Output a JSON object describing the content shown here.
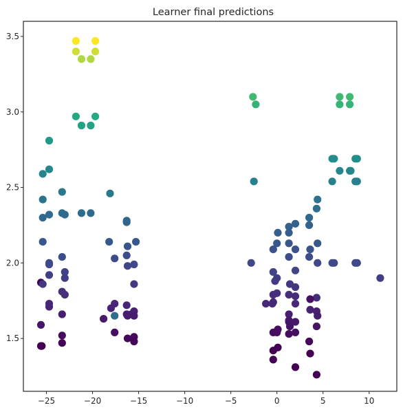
{
  "chart_data": {
    "type": "scatter",
    "title": "Learner final predictions",
    "xlabel": "",
    "ylabel": "",
    "xlim": [
      -27.5,
      13.0
    ],
    "ylim": [
      1.15,
      3.6
    ],
    "x_ticks": [
      -25,
      -20,
      -15,
      -10,
      -5,
      0,
      5,
      10
    ],
    "x_tick_labels": [
      "−25",
      "−20",
      "−15",
      "−10",
      "−5",
      "0",
      "5",
      "10"
    ],
    "y_ticks": [
      1.5,
      2.0,
      2.5,
      3.0,
      3.5
    ],
    "y_tick_labels": [
      "1.5",
      "2.0",
      "2.5",
      "3.0",
      "3.5"
    ],
    "grid": false,
    "colormap": "viridis",
    "color_range": [
      1.44,
      3.47
    ],
    "points": [
      {
        "x": -21.8,
        "y": 3.47,
        "c": 3.47
      },
      {
        "x": -19.7,
        "y": 3.47,
        "c": 3.47
      },
      {
        "x": -21.8,
        "y": 3.4,
        "c": 3.4
      },
      {
        "x": -19.7,
        "y": 3.4,
        "c": 3.4
      },
      {
        "x": -21.2,
        "y": 3.35,
        "c": 3.35
      },
      {
        "x": -20.2,
        "y": 3.35,
        "c": 3.35
      },
      {
        "x": -21.8,
        "y": 2.97,
        "c": 2.97
      },
      {
        "x": -19.7,
        "y": 2.97,
        "c": 2.97
      },
      {
        "x": -21.2,
        "y": 2.91,
        "c": 2.91
      },
      {
        "x": -20.2,
        "y": 2.91,
        "c": 2.91
      },
      {
        "x": -24.7,
        "y": 2.81,
        "c": 2.81
      },
      {
        "x": -24.7,
        "y": 2.62,
        "c": 2.62
      },
      {
        "x": -25.4,
        "y": 2.59,
        "c": 2.59
      },
      {
        "x": -23.3,
        "y": 2.47,
        "c": 2.47
      },
      {
        "x": -25.4,
        "y": 2.42,
        "c": 2.42
      },
      {
        "x": -18.1,
        "y": 2.46,
        "c": 2.46
      },
      {
        "x": -24.7,
        "y": 2.32,
        "c": 2.32
      },
      {
        "x": -23.3,
        "y": 2.33,
        "c": 2.33
      },
      {
        "x": -23.0,
        "y": 2.32,
        "c": 2.32
      },
      {
        "x": -21.2,
        "y": 2.33,
        "c": 2.33
      },
      {
        "x": -20.2,
        "y": 2.33,
        "c": 2.33
      },
      {
        "x": -25.4,
        "y": 2.3,
        "c": 2.3
      },
      {
        "x": -16.3,
        "y": 2.28,
        "c": 2.28
      },
      {
        "x": -16.3,
        "y": 2.27,
        "c": 2.27
      },
      {
        "x": -25.4,
        "y": 2.14,
        "c": 2.14
      },
      {
        "x": -18.2,
        "y": 2.14,
        "c": 2.14
      },
      {
        "x": -15.3,
        "y": 2.14,
        "c": 2.14
      },
      {
        "x": -16.2,
        "y": 2.11,
        "c": 2.11
      },
      {
        "x": -16.3,
        "y": 2.05,
        "c": 2.05
      },
      {
        "x": -23.3,
        "y": 2.04,
        "c": 2.04
      },
      {
        "x": -17.6,
        "y": 2.03,
        "c": 2.03
      },
      {
        "x": -24.7,
        "y": 2.0,
        "c": 2.0
      },
      {
        "x": -24.7,
        "y": 1.99,
        "c": 1.99
      },
      {
        "x": -15.5,
        "y": 1.99,
        "c": 1.99
      },
      {
        "x": -16.2,
        "y": 1.98,
        "c": 1.98
      },
      {
        "x": -23.0,
        "y": 1.94,
        "c": 1.94
      },
      {
        "x": -24.7,
        "y": 1.92,
        "c": 1.92
      },
      {
        "x": -23.0,
        "y": 1.9,
        "c": 1.9
      },
      {
        "x": -25.6,
        "y": 1.87,
        "c": 1.47
      },
      {
        "x": -25.4,
        "y": 1.86,
        "c": 1.86
      },
      {
        "x": -15.5,
        "y": 1.86,
        "c": 1.86
      },
      {
        "x": -23.3,
        "y": 1.81,
        "c": 1.81
      },
      {
        "x": -23.0,
        "y": 1.79,
        "c": 1.79
      },
      {
        "x": -17.6,
        "y": 1.73,
        "c": 1.73
      },
      {
        "x": -24.7,
        "y": 1.73,
        "c": 1.73
      },
      {
        "x": -24.7,
        "y": 1.71,
        "c": 1.71
      },
      {
        "x": -16.3,
        "y": 1.72,
        "c": 1.72
      },
      {
        "x": -18.0,
        "y": 1.7,
        "c": 1.7
      },
      {
        "x": -15.5,
        "y": 1.68,
        "c": 1.68
      },
      {
        "x": -23.3,
        "y": 1.66,
        "c": 1.66
      },
      {
        "x": -16.3,
        "y": 1.66,
        "c": 1.66
      },
      {
        "x": -15.8,
        "y": 1.66,
        "c": 1.66
      },
      {
        "x": -15.5,
        "y": 1.65,
        "c": 1.65
      },
      {
        "x": -16.2,
        "y": 1.65,
        "c": 1.65
      },
      {
        "x": -17.6,
        "y": 1.65,
        "c": 2.35
      },
      {
        "x": -18.8,
        "y": 1.63,
        "c": 1.63
      },
      {
        "x": -25.6,
        "y": 1.59,
        "c": 1.59
      },
      {
        "x": -17.6,
        "y": 1.54,
        "c": 1.54
      },
      {
        "x": -23.3,
        "y": 1.52,
        "c": 1.52
      },
      {
        "x": -15.5,
        "y": 1.51,
        "c": 1.51
      },
      {
        "x": -16.2,
        "y": 1.5,
        "c": 1.5
      },
      {
        "x": -15.5,
        "y": 1.48,
        "c": 1.48
      },
      {
        "x": -23.3,
        "y": 1.47,
        "c": 1.47
      },
      {
        "x": -25.6,
        "y": 1.45,
        "c": 1.44
      },
      {
        "x": -25.5,
        "y": 1.45,
        "c": 1.44
      },
      {
        "x": -2.6,
        "y": 3.1,
        "c": 3.1
      },
      {
        "x": -2.3,
        "y": 3.05,
        "c": 3.05
      },
      {
        "x": 6.8,
        "y": 3.1,
        "c": 3.1
      },
      {
        "x": 7.9,
        "y": 3.1,
        "c": 3.1
      },
      {
        "x": 6.8,
        "y": 3.05,
        "c": 3.05
      },
      {
        "x": 7.9,
        "y": 3.05,
        "c": 3.05
      },
      {
        "x": 6.0,
        "y": 2.69,
        "c": 2.69
      },
      {
        "x": 6.2,
        "y": 2.69,
        "c": 2.69
      },
      {
        "x": 8.5,
        "y": 2.69,
        "c": 2.69
      },
      {
        "x": 8.7,
        "y": 2.69,
        "c": 2.69
      },
      {
        "x": 6.8,
        "y": 2.61,
        "c": 2.61
      },
      {
        "x": 7.9,
        "y": 2.61,
        "c": 2.61
      },
      {
        "x": 8.0,
        "y": 2.61,
        "c": 2.61
      },
      {
        "x": -2.5,
        "y": 2.54,
        "c": 2.54
      },
      {
        "x": 6.0,
        "y": 2.54,
        "c": 2.54
      },
      {
        "x": 8.5,
        "y": 2.54,
        "c": 2.54
      },
      {
        "x": 8.7,
        "y": 2.54,
        "c": 2.54
      },
      {
        "x": 4.4,
        "y": 2.42,
        "c": 2.42
      },
      {
        "x": 4.3,
        "y": 2.36,
        "c": 2.36
      },
      {
        "x": 3.5,
        "y": 2.3,
        "c": 2.3
      },
      {
        "x": 2.0,
        "y": 2.26,
        "c": 2.26
      },
      {
        "x": 1.3,
        "y": 2.24,
        "c": 2.24
      },
      {
        "x": 3.5,
        "y": 2.25,
        "c": 2.25
      },
      {
        "x": 0.1,
        "y": 2.2,
        "c": 2.2
      },
      {
        "x": 1.3,
        "y": 2.2,
        "c": 2.2
      },
      {
        "x": 0.0,
        "y": 2.13,
        "c": 2.13
      },
      {
        "x": 1.3,
        "y": 2.13,
        "c": 2.13
      },
      {
        "x": 4.4,
        "y": 2.13,
        "c": 2.13
      },
      {
        "x": -0.4,
        "y": 2.09,
        "c": 2.09
      },
      {
        "x": 2.0,
        "y": 2.09,
        "c": 2.09
      },
      {
        "x": 3.6,
        "y": 2.09,
        "c": 2.09
      },
      {
        "x": 3.5,
        "y": 2.04,
        "c": 2.04
      },
      {
        "x": 1.3,
        "y": 2.04,
        "c": 2.04
      },
      {
        "x": -2.8,
        "y": 2.0,
        "c": 2.0
      },
      {
        "x": 4.4,
        "y": 2.0,
        "c": 2.0
      },
      {
        "x": 6.0,
        "y": 2.0,
        "c": 2.0
      },
      {
        "x": 6.2,
        "y": 2.0,
        "c": 2.0
      },
      {
        "x": 8.5,
        "y": 2.0,
        "c": 2.0
      },
      {
        "x": 8.7,
        "y": 2.0,
        "c": 2.0
      },
      {
        "x": 2.0,
        "y": 1.95,
        "c": 1.95
      },
      {
        "x": -0.4,
        "y": 1.94,
        "c": 1.94
      },
      {
        "x": 0.0,
        "y": 1.9,
        "c": 1.9
      },
      {
        "x": 11.2,
        "y": 1.9,
        "c": 1.9
      },
      {
        "x": -0.2,
        "y": 1.88,
        "c": 1.88
      },
      {
        "x": 1.4,
        "y": 1.86,
        "c": 1.86
      },
      {
        "x": 2.0,
        "y": 1.84,
        "c": 1.84
      },
      {
        "x": 0.0,
        "y": 1.8,
        "c": 1.8
      },
      {
        "x": -0.4,
        "y": 1.79,
        "c": 1.79
      },
      {
        "x": 1.3,
        "y": 1.79,
        "c": 1.79
      },
      {
        "x": 2.0,
        "y": 1.78,
        "c": 1.78
      },
      {
        "x": 4.3,
        "y": 1.77,
        "c": 1.77
      },
      {
        "x": 3.6,
        "y": 1.76,
        "c": 1.56
      },
      {
        "x": -1.2,
        "y": 1.73,
        "c": 1.73
      },
      {
        "x": -0.4,
        "y": 1.74,
        "c": 1.74
      },
      {
        "x": 2.0,
        "y": 1.73,
        "c": 1.73
      },
      {
        "x": -0.5,
        "y": 1.73,
        "c": 1.73
      },
      {
        "x": 3.6,
        "y": 1.69,
        "c": 1.69
      },
      {
        "x": 4.3,
        "y": 1.68,
        "c": 1.68
      },
      {
        "x": 1.3,
        "y": 1.66,
        "c": 1.66
      },
      {
        "x": 4.4,
        "y": 1.65,
        "c": 1.65
      },
      {
        "x": 1.3,
        "y": 1.62,
        "c": 1.62
      },
      {
        "x": 1.3,
        "y": 1.61,
        "c": 1.61
      },
      {
        "x": 2.0,
        "y": 1.61,
        "c": 1.61
      },
      {
        "x": 1.4,
        "y": 1.58,
        "c": 1.58
      },
      {
        "x": 4.3,
        "y": 1.58,
        "c": 1.58
      },
      {
        "x": 0.1,
        "y": 1.56,
        "c": 1.56
      },
      {
        "x": -0.4,
        "y": 1.54,
        "c": 1.54
      },
      {
        "x": 0.0,
        "y": 1.54,
        "c": 1.54
      },
      {
        "x": 1.3,
        "y": 1.53,
        "c": 1.53
      },
      {
        "x": 2.0,
        "y": 1.54,
        "c": 1.54
      },
      {
        "x": 3.5,
        "y": 1.48,
        "c": 1.48
      },
      {
        "x": 0.1,
        "y": 1.44,
        "c": 1.44
      },
      {
        "x": -0.4,
        "y": 1.42,
        "c": 1.42
      },
      {
        "x": 3.6,
        "y": 1.4,
        "c": 1.4
      },
      {
        "x": -0.4,
        "y": 1.36,
        "c": 1.36
      },
      {
        "x": 2.0,
        "y": 1.31,
        "c": 1.31
      },
      {
        "x": 4.3,
        "y": 1.26,
        "c": 1.26
      }
    ]
  }
}
